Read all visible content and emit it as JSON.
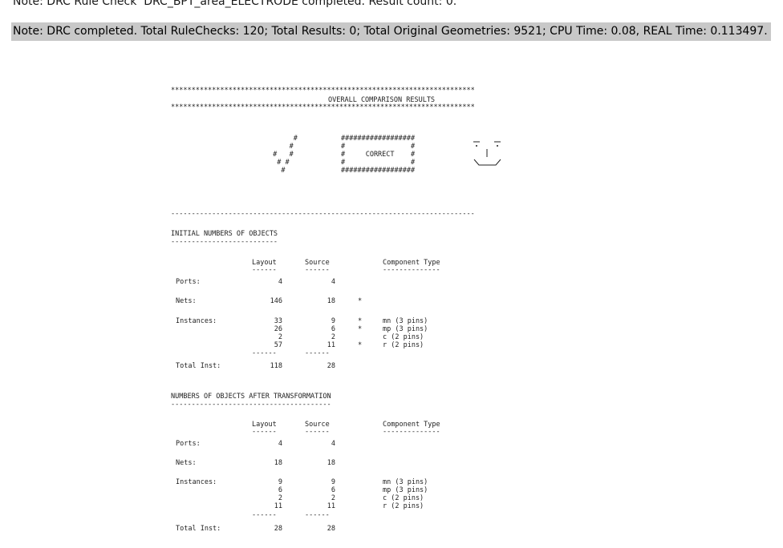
{
  "log": {
    "previous_line": "Note: DRC Rule Check  DRC_BPT_area_ELECTRODE completed. Result count: 0.",
    "current_line": "Note: DRC completed. Total RuleChecks: 120; Total Results: 0; Total Original Geometries: 9521; CPU Time: 0.08, REAL Time: 0.113497."
  },
  "report": {
    "star_line": "**************************************************************************",
    "title": "OVERALL COMPARISON RESULTS",
    "check_art": [
      "      #",
      "     #",
      " #   #",
      "  # #",
      "   #"
    ],
    "box_art": [
      "##################",
      "#                #",
      "#     CORRECT    #",
      "#                #",
      "##################"
    ],
    "smile_art": "_   _\n*   *\n  |\n\\___/",
    "separator": "--------------------------------------------------------------------------",
    "initial": {
      "title": "INITIAL NUMBERS OF OBJECTS",
      "title_underline": "--------------------------",
      "headers": {
        "layout": "Layout",
        "source": "Source",
        "component": "Component Type"
      },
      "header_underline": {
        "layout": "------",
        "source": "------",
        "component": "--------------"
      },
      "ports": {
        "label": "Ports:",
        "layout": "4",
        "source": "4",
        "flag": ""
      },
      "nets": {
        "label": "Nets:",
        "layout": "146",
        "source": "18",
        "flag": "*"
      },
      "instances_label": "Instances:",
      "instances": [
        {
          "layout": "33",
          "source": "9",
          "flag": "*",
          "type": "mn (3 pins)"
        },
        {
          "layout": "26",
          "source": "6",
          "flag": "*",
          "type": "mp (3 pins)"
        },
        {
          "layout": "2",
          "source": "2",
          "flag": "",
          "type": "c (2 pins)"
        },
        {
          "layout": "57",
          "source": "11",
          "flag": "*",
          "type": "r (2 pins)"
        }
      ],
      "total_underline": {
        "layout": "------",
        "source": "------"
      },
      "total": {
        "label": "Total Inst:",
        "layout": "118",
        "source": "28"
      }
    },
    "after": {
      "title": "NUMBERS OF OBJECTS AFTER TRANSFORMATION",
      "title_underline": "---------------------------------------",
      "headers": {
        "layout": "Layout",
        "source": "Source",
        "component": "Component Type"
      },
      "header_underline": {
        "layout": "------",
        "source": "------",
        "component": "--------------"
      },
      "ports": {
        "label": "Ports:",
        "layout": "4",
        "source": "4"
      },
      "nets": {
        "label": "Nets:",
        "layout": "18",
        "source": "18"
      },
      "instances_label": "Instances:",
      "instances": [
        {
          "layout": "9",
          "source": "9",
          "type": "mn (3 pins)"
        },
        {
          "layout": "6",
          "source": "6",
          "type": "mp (3 pins)"
        },
        {
          "layout": "2",
          "source": "2",
          "type": "c (2 pins)"
        },
        {
          "layout": "11",
          "source": "11",
          "type": "r (2 pins)"
        }
      ],
      "total_underline": {
        "layout": "------",
        "source": "------"
      },
      "total": {
        "label": "Total Inst:",
        "layout": "28",
        "source": "28"
      }
    }
  }
}
